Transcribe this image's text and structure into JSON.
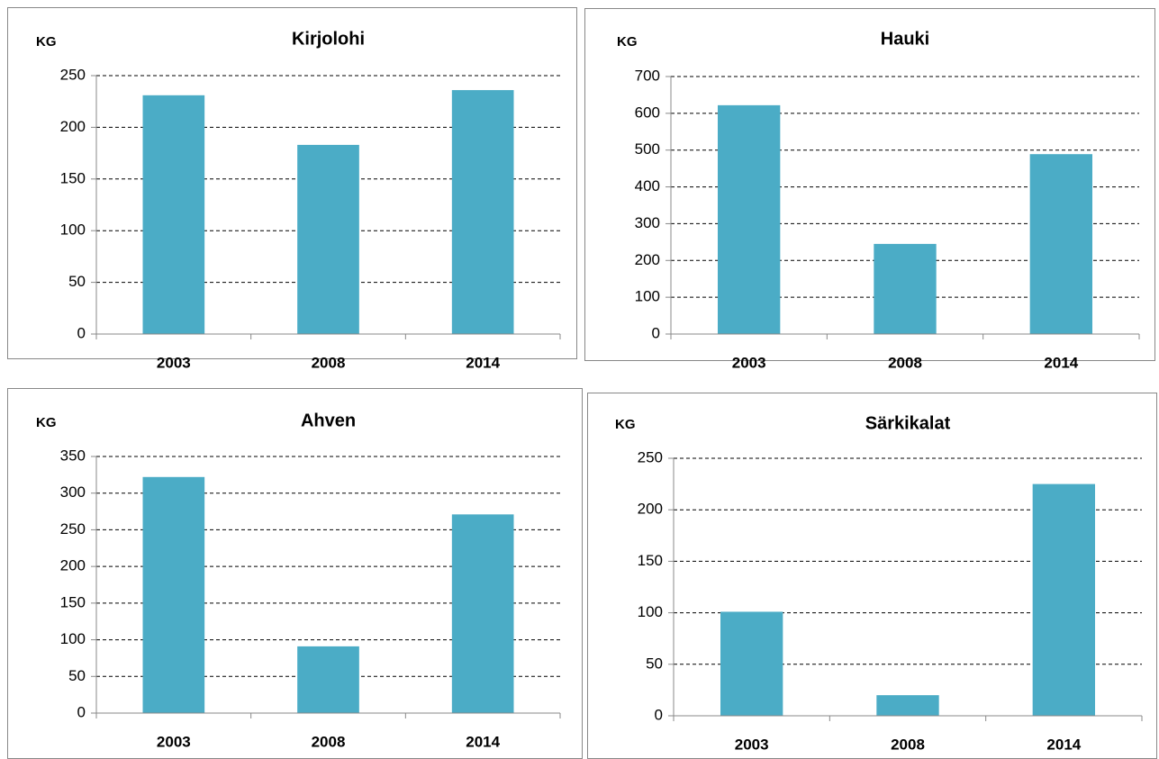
{
  "chart_data": [
    {
      "type": "bar",
      "title": "Kirjolohi",
      "y_label": "KG",
      "categories": [
        "2003",
        "2008",
        "2014"
      ],
      "values": [
        231,
        183,
        236
      ],
      "color": "#4bacc6",
      "ylim": [
        0,
        250
      ],
      "yticks": [
        0,
        50,
        100,
        150,
        200,
        250
      ],
      "grid": true
    },
    {
      "type": "bar",
      "title": "Hauki",
      "y_label": "KG",
      "categories": [
        "2003",
        "2008",
        "2014"
      ],
      "values": [
        622,
        245,
        489
      ],
      "color": "#4bacc6",
      "ylim": [
        0,
        700
      ],
      "yticks": [
        0,
        100,
        200,
        300,
        400,
        500,
        600,
        700
      ],
      "grid": true
    },
    {
      "type": "bar",
      "title": "Ahven",
      "y_label": "KG",
      "categories": [
        "2003",
        "2008",
        "2014"
      ],
      "values": [
        322,
        91,
        271
      ],
      "color": "#4bacc6",
      "ylim": [
        0,
        350
      ],
      "yticks": [
        0,
        50,
        100,
        150,
        200,
        250,
        300,
        350
      ],
      "grid": true
    },
    {
      "type": "bar",
      "title": "Särkikalat",
      "y_label": "KG",
      "categories": [
        "2003",
        "2008",
        "2014"
      ],
      "values": [
        101,
        20,
        225
      ],
      "color": "#4bacc6",
      "ylim": [
        0,
        250
      ],
      "yticks": [
        0,
        50,
        100,
        150,
        200,
        250
      ],
      "grid": true
    }
  ]
}
